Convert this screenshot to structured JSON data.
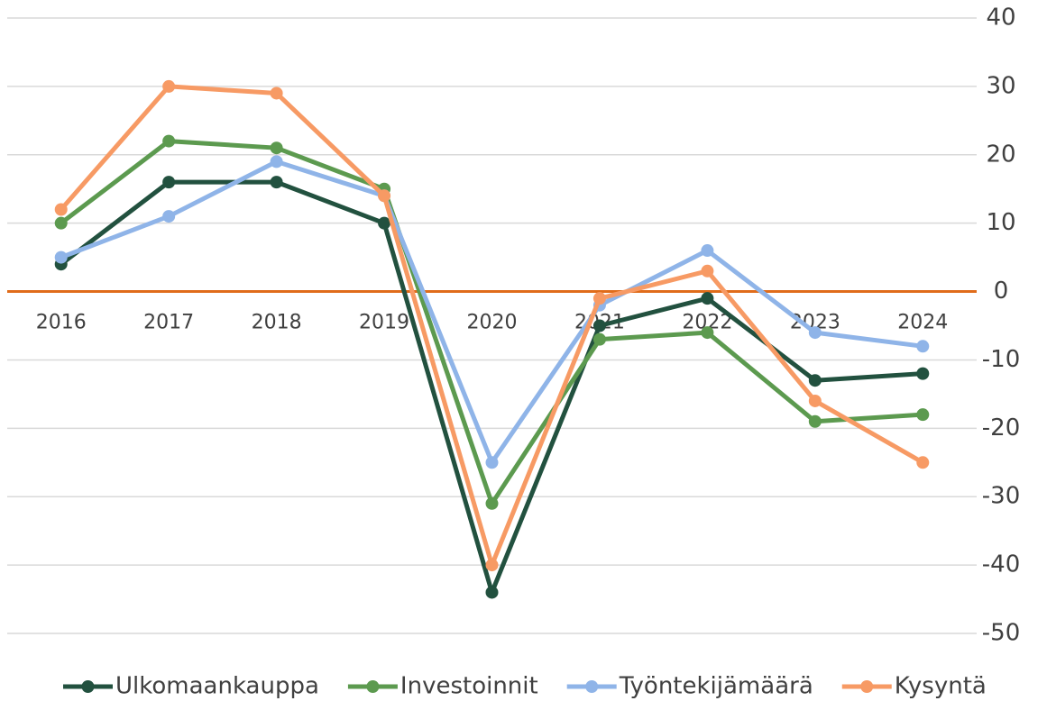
{
  "chart_data": {
    "type": "line",
    "categories": [
      "2016",
      "2017",
      "2018",
      "2019",
      "2020",
      "2021",
      "2022",
      "2023",
      "2024"
    ],
    "series": [
      {
        "name": "Ulkomaankauppa",
        "color": "#22513f",
        "values": [
          4,
          16,
          16,
          10,
          -44,
          -5,
          -1,
          -13,
          -12
        ]
      },
      {
        "name": "Investoinnit",
        "color": "#5c9a4f",
        "values": [
          10,
          22,
          21,
          15,
          -31,
          -7,
          -6,
          -19,
          -18
        ]
      },
      {
        "name": "Työntekijämäärä",
        "color": "#8fb4e8",
        "values": [
          5,
          11,
          19,
          14,
          -25,
          -2,
          6,
          -6,
          -8
        ]
      },
      {
        "name": "Kysyntä",
        "color": "#f79a64",
        "values": [
          12,
          30,
          29,
          14,
          -40,
          -1,
          3,
          -16,
          -25
        ]
      }
    ],
    "ylim": [
      -50,
      40
    ],
    "yticks": [
      -50,
      -40,
      -30,
      -20,
      -10,
      0,
      10,
      20,
      30,
      40
    ],
    "grid": true,
    "axis_color": "#e06c1a",
    "legend": "bottom"
  }
}
